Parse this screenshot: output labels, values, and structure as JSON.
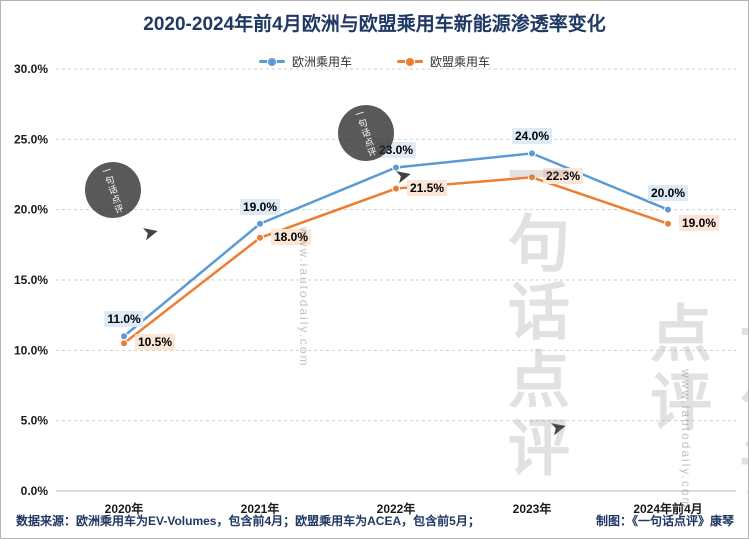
{
  "footer": {
    "source": "数据来源：欧洲乘用车为EV-Volumes，包含前4月；欧盟乘用车为ACEA，包含前5月；",
    "credit": "制图：《一句话点评》康琴"
  },
  "watermark": {
    "brand": "一句话点评",
    "url": "www.iautodaily.com"
  },
  "colors": {
    "europe_blue": "#5B9BD5",
    "eu_orange": "#ED7D31",
    "title_navy": "#1F3864",
    "label_bg_blue": "#DEEBF7",
    "label_bg_orange": "#FBE5D6"
  },
  "chart_data": {
    "type": "line",
    "title": "2020-2024年前4月欧洲与欧盟乘用车新能源渗透率变化",
    "categories": [
      "2020年",
      "2021年",
      "2022年",
      "2023年",
      "2024年前4月"
    ],
    "series": [
      {
        "name": "欧洲乘用车",
        "values": [
          11.0,
          19.0,
          23.0,
          24.0,
          20.0
        ],
        "labels": [
          "11.0%",
          "19.0%",
          "23.0%",
          "24.0%",
          "20.0%"
        ],
        "color": "#5B9BD5",
        "label_bg": "#DEEBF7",
        "label_position": "top"
      },
      {
        "name": "欧盟乘用车",
        "values": [
          10.5,
          18.0,
          21.5,
          22.3,
          19.0
        ],
        "labels": [
          "10.5%",
          "18.0%",
          "21.5%",
          "22.3%",
          "19.0%"
        ],
        "color": "#ED7D31",
        "label_bg": "#FBE5D6",
        "label_position": "right"
      }
    ],
    "ylim": [
      0,
      30
    ],
    "ytick_step": 5,
    "ytick_format": "percent-one-decimal",
    "grid": "horizontal-dashed",
    "legend_position": "top"
  }
}
